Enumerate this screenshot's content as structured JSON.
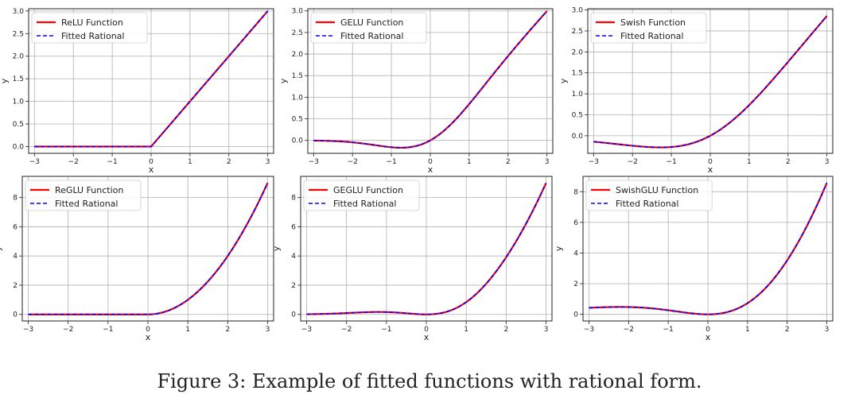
{
  "caption": "Figure 3: Example of fitted functions with rational form.",
  "chart_data": [
    {
      "type": "line",
      "function": "relu",
      "xlabel": "x",
      "ylabel": "y",
      "xlim": [
        -3.15,
        3.15
      ],
      "ylim": [
        -0.15,
        3.05
      ],
      "xticks": [
        -3,
        -2,
        -1,
        0,
        1,
        2,
        3
      ],
      "xtick_labels": [
        "−3",
        "−2",
        "−1",
        "0",
        "1",
        "2",
        "3"
      ],
      "yticks": [
        0,
        0.5,
        1,
        1.5,
        2,
        2.5,
        3
      ],
      "ytick_labels": [
        "0.0",
        "0.5",
        "1.0",
        "1.5",
        "2.0",
        "2.5",
        "3.0"
      ],
      "grid": true,
      "legend_position": "top-left",
      "series": [
        {
          "name": "ReLU Function",
          "color": "#ff0000",
          "style": "solid",
          "x": [
            -3,
            -2,
            -1,
            0,
            1,
            2,
            3
          ],
          "y": [
            0,
            0,
            0,
            0,
            1,
            2,
            3
          ]
        },
        {
          "name": "Fitted Rational",
          "color": "#0000ff",
          "style": "dashed",
          "x": [
            -3,
            -2,
            -1,
            0,
            1,
            2,
            3
          ],
          "y": [
            0,
            0,
            0,
            0,
            1,
            2,
            3
          ]
        }
      ]
    },
    {
      "type": "line",
      "function": "gelu",
      "xlabel": "x",
      "ylabel": "y",
      "xlim": [
        -3.15,
        3.15
      ],
      "ylim": [
        -0.3,
        3.05
      ],
      "xticks": [
        -3,
        -2,
        -1,
        0,
        1,
        2,
        3
      ],
      "xtick_labels": [
        "−3",
        "−2",
        "−1",
        "0",
        "1",
        "2",
        "3"
      ],
      "yticks": [
        0,
        0.5,
        1,
        1.5,
        2,
        2.5,
        3
      ],
      "ytick_labels": [
        "0.0",
        "0.5",
        "1.0",
        "1.5",
        "2.0",
        "2.5",
        "3.0"
      ],
      "grid": true,
      "legend_position": "top-left",
      "series": [
        {
          "name": "GELU Function",
          "color": "#ff0000",
          "style": "solid",
          "x": [
            -3,
            -2,
            -1,
            0,
            1,
            2,
            3
          ],
          "y": [
            -0.004,
            -0.045,
            -0.159,
            0,
            0.841,
            1.955,
            2.996
          ]
        },
        {
          "name": "Fitted Rational",
          "color": "#0000ff",
          "style": "dashed",
          "x": [
            -3,
            -2,
            -1,
            0,
            1,
            2,
            3
          ],
          "y": [
            -0.004,
            -0.045,
            -0.159,
            0,
            0.841,
            1.955,
            2.996
          ]
        }
      ]
    },
    {
      "type": "line",
      "function": "swish",
      "xlabel": "x",
      "ylabel": "y",
      "xlim": [
        -3.15,
        3.15
      ],
      "ylim": [
        -0.42,
        3.03
      ],
      "xticks": [
        -3,
        -2,
        -1,
        0,
        1,
        2,
        3
      ],
      "xtick_labels": [
        "−3",
        "−2",
        "−1",
        "0",
        "1",
        "2",
        "3"
      ],
      "yticks": [
        0,
        0.5,
        1,
        1.5,
        2,
        2.5,
        3
      ],
      "ytick_labels": [
        "0.0",
        "0.5",
        "1.0",
        "1.5",
        "2.0",
        "2.5",
        "3.0"
      ],
      "grid": true,
      "legend_position": "top-left",
      "series": [
        {
          "name": "Swish Function",
          "color": "#ff0000",
          "style": "solid",
          "x": [
            -3,
            -2,
            -1,
            0,
            1,
            2,
            3
          ],
          "y": [
            -0.142,
            -0.238,
            -0.269,
            0,
            0.731,
            1.762,
            2.858
          ]
        },
        {
          "name": "Fitted Rational",
          "color": "#0000ff",
          "style": "dashed",
          "x": [
            -3,
            -2,
            -1,
            0,
            1,
            2,
            3
          ],
          "y": [
            -0.142,
            -0.238,
            -0.269,
            0,
            0.731,
            1.762,
            2.858
          ]
        }
      ]
    },
    {
      "type": "line",
      "function": "reglu",
      "xlabel": "x",
      "ylabel": "y",
      "xlim": [
        -3.15,
        3.15
      ],
      "ylim": [
        -0.45,
        9.45
      ],
      "xticks": [
        -3,
        -2,
        -1,
        0,
        1,
        2,
        3
      ],
      "xtick_labels": [
        "−3",
        "−2",
        "−1",
        "0",
        "1",
        "2",
        "3"
      ],
      "yticks": [
        0,
        2,
        4,
        6,
        8
      ],
      "ytick_labels": [
        "0",
        "2",
        "4",
        "6",
        "8"
      ],
      "grid": true,
      "legend_position": "top-left",
      "series": [
        {
          "name": "ReGLU Function",
          "color": "#ff0000",
          "style": "solid",
          "x": [
            -3,
            -2,
            -1,
            0,
            1,
            2,
            3
          ],
          "y": [
            0,
            0,
            0,
            0,
            1,
            4,
            9
          ]
        },
        {
          "name": "Fitted Rational",
          "color": "#0000ff",
          "style": "dashed",
          "x": [
            -3,
            -2,
            -1,
            0,
            1,
            2,
            3
          ],
          "y": [
            0,
            0,
            0,
            0,
            1,
            4,
            9
          ]
        }
      ]
    },
    {
      "type": "line",
      "function": "geglu",
      "xlabel": "x",
      "ylabel": "y",
      "xlim": [
        -3.15,
        3.15
      ],
      "ylim": [
        -0.45,
        9.45
      ],
      "xticks": [
        -3,
        -2,
        -1,
        0,
        1,
        2,
        3
      ],
      "xtick_labels": [
        "−3",
        "−2",
        "−1",
        "0",
        "1",
        "2",
        "3"
      ],
      "yticks": [
        0,
        2,
        4,
        6,
        8
      ],
      "ytick_labels": [
        "0",
        "2",
        "4",
        "6",
        "8"
      ],
      "grid": true,
      "legend_position": "top-left",
      "series": [
        {
          "name": "GEGLU Function",
          "color": "#ff0000",
          "style": "solid",
          "x": [
            -3,
            -2,
            -1,
            0,
            1,
            2,
            3
          ],
          "y": [
            0.012,
            0.091,
            0.159,
            0,
            0.841,
            3.909,
            8.988
          ]
        },
        {
          "name": "Fitted Rational",
          "color": "#0000ff",
          "style": "dashed",
          "x": [
            -3,
            -2,
            -1,
            0,
            1,
            2,
            3
          ],
          "y": [
            0.012,
            0.091,
            0.159,
            0,
            0.841,
            3.909,
            8.988
          ]
        }
      ]
    },
    {
      "type": "line",
      "function": "swishglu",
      "xlabel": "x",
      "ylabel": "y",
      "xlim": [
        -3.15,
        3.15
      ],
      "ylim": [
        -0.43,
        9.0
      ],
      "xticks": [
        -3,
        -2,
        -1,
        0,
        1,
        2,
        3
      ],
      "xtick_labels": [
        "−3",
        "−2",
        "−1",
        "0",
        "1",
        "2",
        "3"
      ],
      "yticks": [
        0,
        2,
        4,
        6,
        8
      ],
      "ytick_labels": [
        "0",
        "2",
        "4",
        "6",
        "8"
      ],
      "grid": true,
      "legend_position": "top-left",
      "series": [
        {
          "name": "SwishGLU Function",
          "color": "#ff0000",
          "style": "solid",
          "x": [
            -3,
            -2,
            -1,
            0,
            1,
            2,
            3
          ],
          "y": [
            0.427,
            0.477,
            0.269,
            0,
            0.731,
            3.523,
            8.573
          ]
        },
        {
          "name": "Fitted Rational",
          "color": "#0000ff",
          "style": "dashed",
          "x": [
            -3,
            -2,
            -1,
            0,
            1,
            2,
            3
          ],
          "y": [
            0.427,
            0.477,
            0.269,
            0,
            0.731,
            3.523,
            8.573
          ]
        }
      ]
    }
  ]
}
